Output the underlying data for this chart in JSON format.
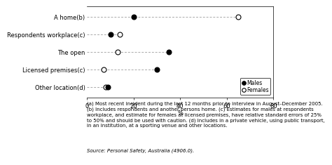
{
  "categories": [
    "A home(b)",
    "Respondents workplace(c)",
    "The open",
    "Licensed premises(c)",
    "Other location(d)"
  ],
  "males": [
    20.0,
    10.0,
    35.0,
    30.0,
    9.0
  ],
  "females": [
    65.0,
    14.0,
    13.0,
    7.0,
    8.0
  ],
  "xlabel": "%",
  "xlim": [
    0,
    80
  ],
  "xticks": [
    0,
    20,
    40,
    60,
    80
  ],
  "legend_labels": [
    "Males",
    "Females"
  ],
  "footnote_lines": [
    "(a) Most recent incident during the last 12 months prior to interview in August–December 2005.",
    "(b) Includes respondents and another persons home. (c) Estimates for males at respondents",
    "workplace, and estimate for females at licensed premises, have relative standard errors of 25%",
    "to 50% and should be used with caution. (d) Includes in a private vehicle, using public transport,",
    "in an institution, at a sporting venue and other locations."
  ],
  "source": "Source: Personal Safety, Australia (4906.0).",
  "bg_color": "#ffffff",
  "dash_color": "#aaaaaa",
  "marker_size": 5,
  "tick_fontsize": 6,
  "label_fontsize": 6,
  "footnote_fontsize": 5,
  "source_fontsize": 5
}
